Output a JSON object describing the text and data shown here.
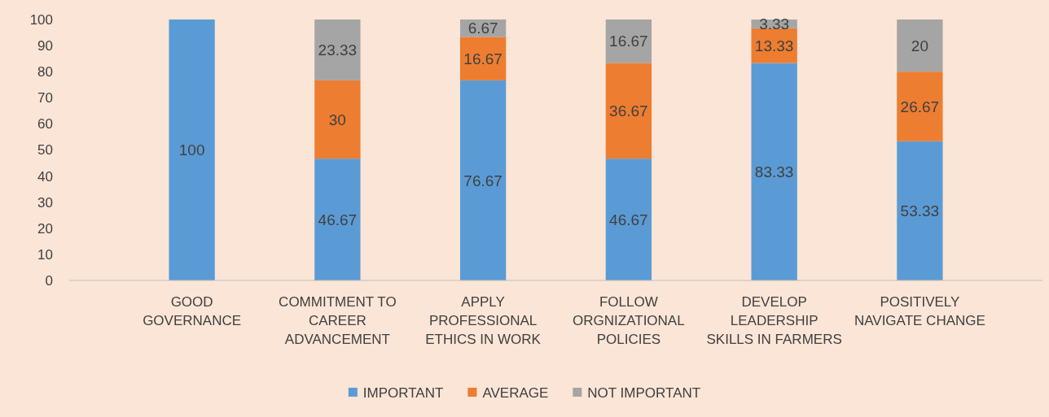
{
  "chart_data": {
    "type": "bar",
    "stacked": true,
    "categories": [
      "GOOD GOVERNANCE",
      "COMMITMENT TO CAREER ADVANCEMENT",
      "APPLY PROFESSIONAL ETHICS IN WORK",
      "FOLLOW ORGNIZATIONAL POLICIES",
      "DEVELOP LEADERSHIP SKILLS IN FARMERS",
      "POSITIVELY NAVIGATE CHANGE"
    ],
    "series": [
      {
        "name": "IMPORTANT",
        "color": "#5b9bd5",
        "values": [
          100,
          46.67,
          76.67,
          46.67,
          83.33,
          53.33
        ]
      },
      {
        "name": "AVERAGE",
        "color": "#ed7d31",
        "values": [
          null,
          30,
          16.67,
          36.67,
          13.33,
          26.67
        ]
      },
      {
        "name": "NOT IMPORTANT",
        "color": "#a5a5a5",
        "values": [
          null,
          23.33,
          6.67,
          16.67,
          3.33,
          20
        ]
      }
    ],
    "ylim": [
      0,
      100
    ],
    "yticks": [
      0,
      10,
      20,
      30,
      40,
      50,
      60,
      70,
      80,
      90,
      100
    ],
    "grid": false,
    "legend": "bottom",
    "data_labels": true
  }
}
